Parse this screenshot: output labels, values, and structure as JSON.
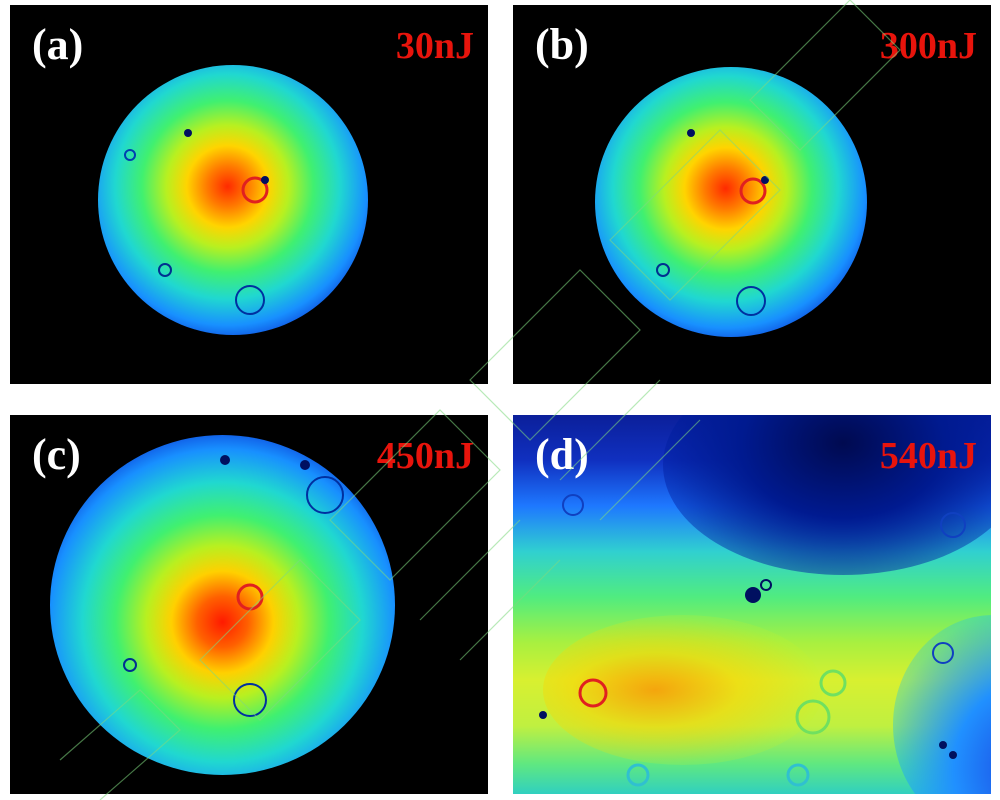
{
  "panels": [
    {
      "id": "a",
      "label": "(a)",
      "energy": "30nJ"
    },
    {
      "id": "b",
      "label": "(b)",
      "energy": "300nJ"
    },
    {
      "id": "c",
      "label": "(c)",
      "energy": "450nJ"
    },
    {
      "id": "d",
      "label": "(d)",
      "energy": "540nJ"
    }
  ],
  "colors": {
    "background": "#000000",
    "energy_text": "#e8140c",
    "label_text": "#ffffff",
    "watermark": "#7fd97f"
  }
}
